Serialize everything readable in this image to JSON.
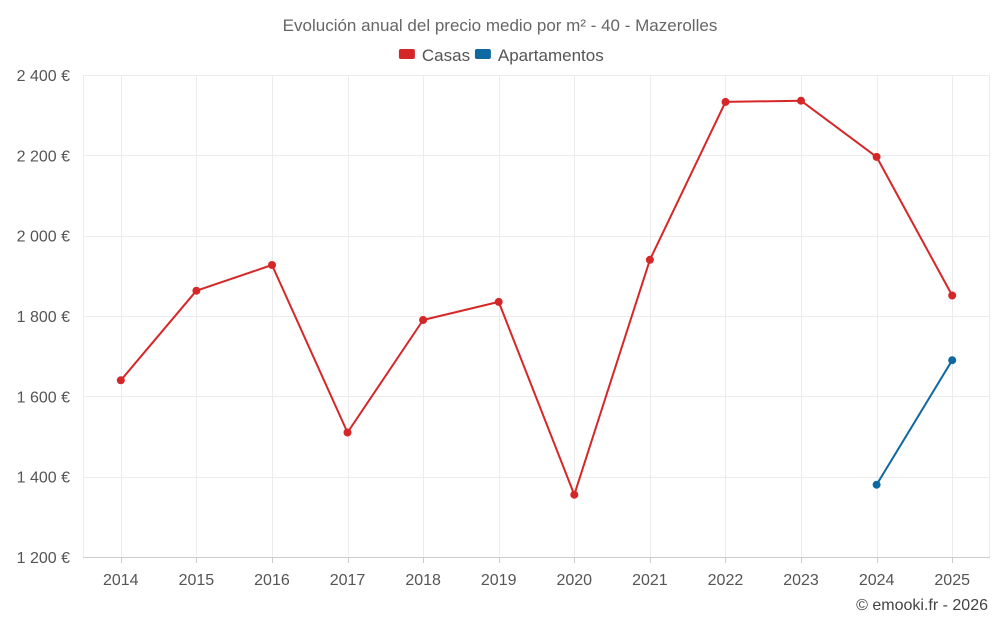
{
  "chart_data": {
    "type": "line",
    "title": "Evolución anual del precio medio por m² - 40 - Mazerolles",
    "categories": [
      "2014",
      "2015",
      "2016",
      "2017",
      "2018",
      "2019",
      "2020",
      "2021",
      "2022",
      "2023",
      "2024",
      "2025"
    ],
    "series": [
      {
        "name": "Casas",
        "color": "#d62728",
        "values": [
          1640,
          1863,
          1927,
          1510,
          1790,
          1835,
          1355,
          1940,
          2333,
          2336,
          2196,
          1851
        ]
      },
      {
        "name": "Apartamentos",
        "color": "#0f68a0",
        "values": [
          null,
          null,
          null,
          null,
          null,
          null,
          null,
          null,
          null,
          null,
          1380,
          1690
        ]
      }
    ],
    "ylim": [
      1200,
      2400
    ],
    "yticks": [
      1200,
      1400,
      1600,
      1800,
      2000,
      2200,
      2400
    ],
    "ytick_labels": [
      "1 200 €",
      "1 400 €",
      "1 600 €",
      "1 800 €",
      "2 000 €",
      "2 200 €",
      "2 400 €"
    ],
    "xlabel": "",
    "ylabel": "",
    "grid": true,
    "legend_position": "top-center"
  },
  "credit": "© emooki.fr - 2026"
}
